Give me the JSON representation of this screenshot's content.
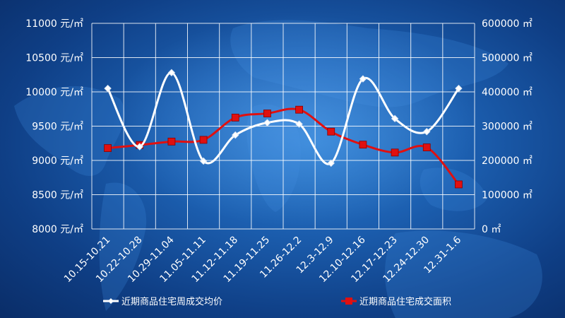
{
  "chart_data": {
    "type": "line",
    "categories": [
      "10.15-10.21",
      "10.22-10.28",
      "10.29-11.04",
      "11.05-11.11",
      "11.12-11.18",
      "11.19-11.25",
      "11.26-12.2",
      "12.3-12.9",
      "12.10-12.16",
      "12.17-12.23",
      "12.24-12.30",
      "12.31-1.6"
    ],
    "y_left": {
      "ylim": [
        8000,
        11000
      ],
      "ticks": [
        8000,
        8500,
        9000,
        9500,
        10000,
        10500,
        11000
      ],
      "tick_labels": [
        "8000 元/㎡",
        "8500 元/㎡",
        "9000 元/㎡",
        "9500 元/㎡",
        "10000 元/㎡",
        "10500 元/㎡",
        "11000 元/㎡"
      ]
    },
    "y_right": {
      "ylim": [
        0,
        600000
      ],
      "ticks": [
        0,
        100000,
        200000,
        300000,
        400000,
        500000,
        600000
      ],
      "tick_labels": [
        "0 ㎡",
        "100000 ㎡",
        "200000 ㎡",
        "300000 ㎡",
        "400000 ㎡",
        "500000 ㎡",
        "600000 ㎡"
      ]
    },
    "series": [
      {
        "name": "近期商品住宅周成交均价",
        "axis": "left",
        "color": "#ffffff",
        "marker": "diamond",
        "values": [
          10050,
          9200,
          10280,
          8990,
          9370,
          9550,
          9530,
          8960,
          10190,
          9610,
          9420,
          10050
        ]
      },
      {
        "name": "近期商品住宅成交面积",
        "axis": "right",
        "color": "#e01010",
        "marker": "square",
        "values": [
          236000,
          245000,
          255000,
          260000,
          325000,
          337000,
          348000,
          284000,
          246000,
          223000,
          238000,
          130000
        ]
      }
    ],
    "grid": true,
    "legend": "bottom"
  }
}
